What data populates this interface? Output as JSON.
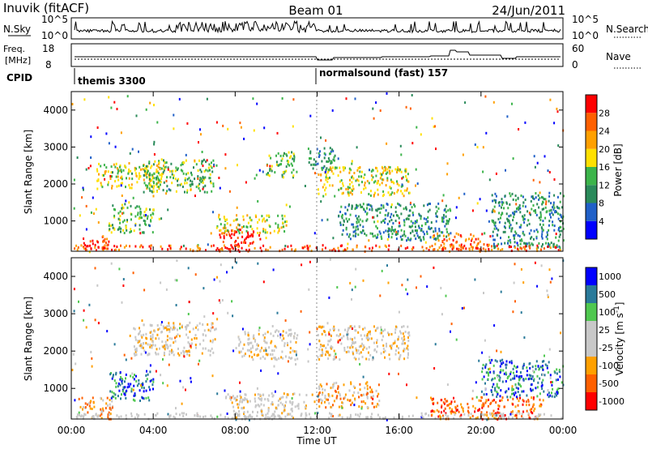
{
  "header": {
    "station": "Inuvik (fitACF)",
    "beam": "Beam 01",
    "date": "24/Jun/2011"
  },
  "noise_panel": {
    "left_label": "N.Sky",
    "right_label": "N.Search",
    "left_ticks": [
      "10^5",
      "10^0"
    ],
    "right_ticks": [
      "10^5",
      "10^0"
    ]
  },
  "freq_panel": {
    "left_label_line1": "Freq.",
    "left_label_line2": "[MHz]",
    "right_label": "Nave",
    "left_ticks": [
      "18",
      "8"
    ],
    "right_ticks": [
      "60",
      "0"
    ]
  },
  "cpid": {
    "label": "CPID",
    "segments": [
      "themis 3300",
      "normalsound (fast) 157"
    ]
  },
  "colors": {
    "power": [
      "#0000ff",
      "#2060c8",
      "#2a8a5a",
      "#3cb44a",
      "#ffe000",
      "#ffa000",
      "#ff6000",
      "#ff0000"
    ],
    "velocity": [
      "#ff0000",
      "#ff6000",
      "#ffa000",
      "#c8c8c8",
      "#c8c8c8",
      "#50c850",
      "#2a7a9a",
      "#0000ff"
    ],
    "ground_scatter": "#c8c8c8"
  },
  "chart_data": [
    {
      "type": "heatmap",
      "title": "Power",
      "xlabel": "",
      "ylabel": "Slant Range [km]",
      "x_range_hours": [
        0,
        24
      ],
      "ylim": [
        180,
        4500
      ],
      "yticks": [
        1000,
        2000,
        3000,
        4000
      ],
      "colorbar": {
        "label": "Power [dB]",
        "ticks": [
          "4",
          "8",
          "12",
          "16",
          "20",
          "24",
          "28"
        ],
        "range": [
          0,
          30
        ]
      },
      "scatter_regions": [
        {
          "t": [
            0.3,
            1.8
          ],
          "r": [
            200,
            600
          ],
          "level": 7
        },
        {
          "t": [
            1.8,
            4.0
          ],
          "r": [
            700,
            1500
          ],
          "level": 3
        },
        {
          "t": [
            1.2,
            4.5
          ],
          "r": [
            1900,
            2600
          ],
          "level": 4
        },
        {
          "t": [
            3.5,
            7.0
          ],
          "r": [
            1800,
            2700
          ],
          "level": 3
        },
        {
          "t": [
            7.2,
            9.2
          ],
          "r": [
            200,
            800
          ],
          "level": 7
        },
        {
          "t": [
            7.0,
            10.5
          ],
          "r": [
            700,
            1200
          ],
          "level": 4
        },
        {
          "t": [
            9.5,
            11.0
          ],
          "r": [
            2200,
            2900
          ],
          "level": 3
        },
        {
          "t": [
            11.5,
            13.0
          ],
          "r": [
            2400,
            3000
          ],
          "level": 2
        },
        {
          "t": [
            12.0,
            16.5
          ],
          "r": [
            1700,
            2500
          ],
          "level": 4
        },
        {
          "t": [
            13.0,
            18.5
          ],
          "r": [
            500,
            1500
          ],
          "level": 2
        },
        {
          "t": [
            17.5,
            20.5
          ],
          "r": [
            200,
            700
          ],
          "level": 6
        },
        {
          "t": [
            20.5,
            24.0
          ],
          "r": [
            300,
            1800
          ],
          "level": 2
        }
      ]
    },
    {
      "type": "heatmap",
      "title": "Velocity",
      "xlabel": "Time UT",
      "ylabel": "Slant Range [km]",
      "x_range_hours": [
        0,
        24
      ],
      "ylim": [
        180,
        4500
      ],
      "yticks": [
        1000,
        2000,
        3000,
        4000
      ],
      "xticks": [
        "00:00",
        "04:00",
        "08:00",
        "12:00",
        "16:00",
        "20:00",
        "00:00"
      ],
      "colorbar": {
        "label": "Velocity [m s^-1]",
        "ticks": [
          "-1000",
          "-500",
          "-100",
          "-25",
          "25",
          "100",
          "500",
          "1000"
        ]
      },
      "scatter_regions": [
        {
          "t": [
            0.3,
            2.0
          ],
          "r": [
            200,
            800
          ],
          "level": 2
        },
        {
          "t": [
            1.8,
            4.0
          ],
          "r": [
            700,
            1500
          ],
          "level": 6
        },
        {
          "t": [
            3.0,
            7.0
          ],
          "r": [
            1900,
            2800
          ],
          "level": 3
        },
        {
          "t": [
            7.5,
            11.5
          ],
          "r": [
            200,
            900
          ],
          "level": 3
        },
        {
          "t": [
            8.0,
            11.0
          ],
          "r": [
            1800,
            2600
          ],
          "level": 3
        },
        {
          "t": [
            12.0,
            16.5
          ],
          "r": [
            1800,
            2700
          ],
          "level": 3
        },
        {
          "t": [
            12.0,
            15.0
          ],
          "r": [
            500,
            1200
          ],
          "level": 2
        },
        {
          "t": [
            17.5,
            23.0
          ],
          "r": [
            200,
            800
          ],
          "level": 1
        },
        {
          "t": [
            20.0,
            24.0
          ],
          "r": [
            800,
            1800
          ],
          "level": 6
        }
      ]
    }
  ]
}
